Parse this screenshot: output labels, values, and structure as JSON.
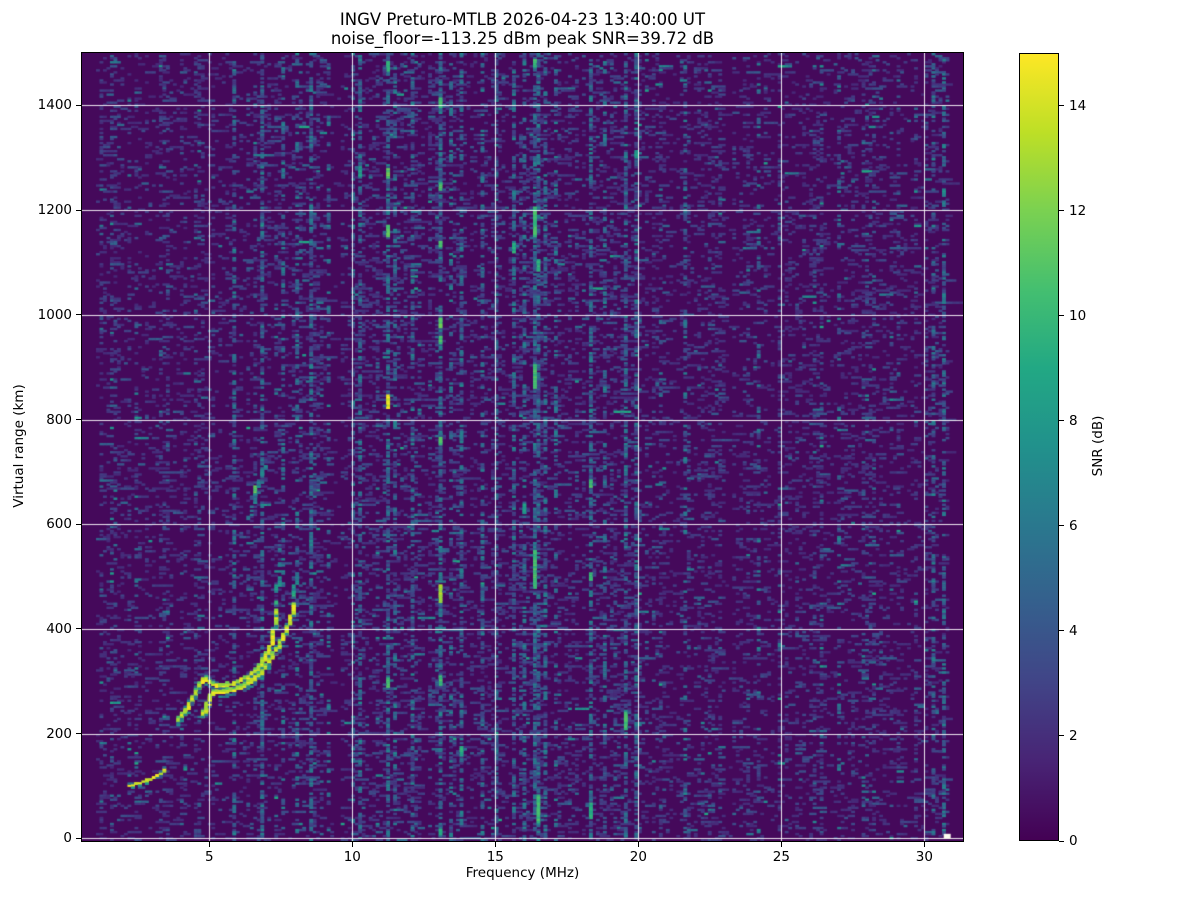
{
  "title": {
    "line1": "INGV Preturo-MTLB 2026-04-23 13:40:00  UT",
    "line2": "noise_floor=-113.25 dBm peak SNR=39.72 dB"
  },
  "chart_data": {
    "type": "heatmap",
    "title": "INGV Preturo-MTLB 2026-04-23 13:40:00  UT",
    "subtitle": "noise_floor=-113.25 dBm peak SNR=39.72 dB",
    "station": "INGV Preturo-MTLB",
    "timestamp_ut": "2026-04-23 13:40:00",
    "noise_floor_dbm": -113.25,
    "peak_snr_db": 39.72,
    "xlabel": "Frequency (MHz)",
    "ylabel": "Virtual range (km)",
    "xlim": [
      0.55,
      31.35
    ],
    "ylim": [
      -5,
      1500
    ],
    "x_ticks": [
      5,
      10,
      15,
      20,
      25,
      30
    ],
    "y_ticks": [
      0,
      200,
      400,
      600,
      800,
      1000,
      1200,
      1400
    ],
    "grid": true,
    "grid_color": "rgba(255,255,255,0.9)",
    "figure_background": "#ffffff",
    "colorbar": {
      "label": "SNR (dB)",
      "vmin": 0,
      "vmax": 15,
      "ticks": [
        0,
        2,
        4,
        6,
        8,
        10,
        12,
        14
      ]
    },
    "colormap": "viridis",
    "colormap_stops": [
      "#440154",
      "#482475",
      "#414487",
      "#355f8d",
      "#2a788e",
      "#21918c",
      "#22a884",
      "#44bf70",
      "#7ad151",
      "#bddf26",
      "#fde725"
    ],
    "noise": {
      "seed": 20260423,
      "mean_db": 1.05,
      "speckle_threshold_db": 1.7,
      "quiet_below_mhz": 1.05,
      "quiet_above_mhz": 30.9,
      "dark_bands": [
        {
          "f": 9.4,
          "halfwidth": 0.25,
          "factor": 0.4
        },
        {
          "f": 12.55,
          "halfwidth": 0.12,
          "factor": 0.55
        }
      ]
    },
    "interference_stripes": [
      {
        "f": 5.84,
        "density": 0.35
      },
      {
        "f": 6.9,
        "density": 0.45
      },
      {
        "f": 7.53,
        "density": 0.28
      },
      {
        "f": 8.1,
        "density": 0.3
      },
      {
        "f": 8.58,
        "density": 0.5
      },
      {
        "f": 9.2,
        "density": 0.22
      },
      {
        "f": 10.05,
        "density": 0.3
      },
      {
        "f": 10.25,
        "density": 0.45
      },
      {
        "f": 11.25,
        "density": 0.55
      },
      {
        "f": 11.45,
        "density": 0.3
      },
      {
        "f": 12.1,
        "density": 0.35
      },
      {
        "f": 13.05,
        "density": 0.55
      },
      {
        "f": 13.45,
        "density": 0.25
      },
      {
        "f": 13.75,
        "density": 0.4
      },
      {
        "f": 14.5,
        "density": 0.3
      },
      {
        "f": 15.0,
        "density": 0.3
      },
      {
        "f": 15.62,
        "density": 0.45
      },
      {
        "f": 16.05,
        "density": 0.4
      },
      {
        "f": 16.35,
        "density": 0.55
      },
      {
        "f": 16.52,
        "density": 0.45
      },
      {
        "f": 16.73,
        "density": 0.35
      },
      {
        "f": 17.1,
        "density": 0.25
      },
      {
        "f": 18.35,
        "density": 0.5
      },
      {
        "f": 18.8,
        "density": 0.25
      },
      {
        "f": 19.5,
        "density": 0.4
      },
      {
        "f": 19.9,
        "density": 0.35
      },
      {
        "f": 21.6,
        "density": 0.25
      },
      {
        "f": 24.2,
        "density": 0.18
      },
      {
        "f": 27.0,
        "density": 0.16
      },
      {
        "f": 30.3,
        "density": 0.2
      },
      {
        "f": 30.65,
        "density": 0.4
      }
    ],
    "bright_marks_format": "[freq_mhz, range_km, length_km, snr_db]",
    "bright_marks": [
      [
        6.63,
        658,
        14,
        12
      ],
      [
        11.25,
        1468,
        14,
        11
      ],
      [
        11.25,
        1262,
        16,
        12
      ],
      [
        11.25,
        1150,
        20,
        12
      ],
      [
        11.22,
        822,
        22,
        15
      ],
      [
        11.25,
        292,
        12,
        11
      ],
      [
        13.05,
        1396,
        16,
        11
      ],
      [
        13.05,
        1240,
        12,
        11
      ],
      [
        13.05,
        1130,
        10,
        11
      ],
      [
        13.05,
        976,
        16,
        12
      ],
      [
        13.05,
        948,
        10,
        11
      ],
      [
        13.05,
        752,
        12,
        11
      ],
      [
        13.02,
        452,
        30,
        14
      ],
      [
        13.05,
        296,
        12,
        11
      ],
      [
        13.05,
        8,
        10,
        10
      ],
      [
        16.35,
        1476,
        12,
        11
      ],
      [
        16.4,
        1150,
        55,
        11
      ],
      [
        16.45,
        1085,
        20,
        10
      ],
      [
        16.4,
        862,
        40,
        11
      ],
      [
        16.42,
        480,
        70,
        11
      ],
      [
        16.45,
        30,
        50,
        11
      ],
      [
        16.05,
        622,
        15,
        9
      ],
      [
        18.35,
        672,
        12,
        11
      ],
      [
        18.35,
        495,
        10,
        11
      ],
      [
        18.38,
        40,
        28,
        10
      ],
      [
        19.5,
        208,
        32,
        11
      ],
      [
        19.9,
        1300,
        12,
        9
      ],
      [
        10.25,
        1268,
        14,
        9
      ],
      [
        13.75,
        160,
        14,
        10
      ],
      [
        15.62,
        1118,
        16,
        10
      ],
      [
        30.65,
        1228,
        12,
        8
      ]
    ],
    "hot_pixel": {
      "f": 30.78,
      "r": 3,
      "color": "#fcfcf0"
    },
    "echo_traces": [
      {
        "name": "E-layer-echo",
        "width": 1,
        "vmax": 15,
        "fade": false,
        "density": 0.92,
        "points": [
          [
            2.22,
            101
          ],
          [
            2.5,
            105
          ],
          [
            2.8,
            110
          ],
          [
            3.1,
            117
          ],
          [
            3.35,
            126
          ],
          [
            3.52,
            133
          ]
        ]
      },
      {
        "name": "F-trace-O-mode",
        "width": 2,
        "vmax": 15,
        "fade": false,
        "density": 0.95,
        "points": [
          [
            3.88,
            224
          ],
          [
            4.02,
            231
          ],
          [
            4.15,
            240
          ],
          [
            4.28,
            252
          ],
          [
            4.42,
            266
          ],
          [
            4.57,
            283
          ],
          [
            4.72,
            297
          ],
          [
            4.87,
            304
          ],
          [
            5.02,
            298
          ],
          [
            5.2,
            291
          ],
          [
            5.42,
            290
          ],
          [
            5.68,
            293
          ],
          [
            5.95,
            297
          ],
          [
            6.22,
            303
          ],
          [
            6.5,
            313
          ],
          [
            6.73,
            325
          ],
          [
            6.93,
            341
          ],
          [
            7.1,
            360
          ],
          [
            7.22,
            382
          ],
          [
            7.3,
            408
          ],
          [
            7.35,
            435
          ]
        ]
      },
      {
        "name": "F-trace-O-cusp",
        "width": 1,
        "vmax": 10,
        "fade": true,
        "density": 0.8,
        "points": [
          [
            7.36,
            445
          ],
          [
            7.4,
            490
          ],
          [
            7.43,
            540
          ],
          [
            7.45,
            565
          ]
        ]
      },
      {
        "name": "F-trace-X-mode",
        "width": 2,
        "vmax": 15,
        "fade": false,
        "density": 0.9,
        "points": [
          [
            4.78,
            234
          ],
          [
            4.9,
            250
          ],
          [
            5.0,
            264
          ],
          [
            5.1,
            276
          ],
          [
            5.28,
            279
          ],
          [
            5.55,
            280
          ],
          [
            5.85,
            283
          ],
          [
            6.15,
            289
          ],
          [
            6.45,
            298
          ],
          [
            6.72,
            310
          ],
          [
            6.95,
            325
          ],
          [
            7.18,
            344
          ],
          [
            7.4,
            365
          ],
          [
            7.6,
            385
          ],
          [
            7.75,
            403
          ],
          [
            7.88,
            424
          ],
          [
            7.96,
            448
          ]
        ]
      },
      {
        "name": "F-trace-X-cusp",
        "width": 1,
        "vmax": 10,
        "fade": true,
        "density": 0.8,
        "points": [
          [
            7.98,
            460
          ],
          [
            8.02,
            495
          ],
          [
            8.05,
            520
          ]
        ]
      },
      {
        "name": "second-hop-echo",
        "width": 1,
        "vmax": 7.5,
        "fade": false,
        "density": 0.55,
        "points": [
          [
            6.35,
            606
          ],
          [
            6.5,
            630
          ],
          [
            6.63,
            652
          ],
          [
            6.76,
            676
          ],
          [
            6.88,
            698
          ],
          [
            6.97,
            716
          ]
        ]
      }
    ]
  }
}
